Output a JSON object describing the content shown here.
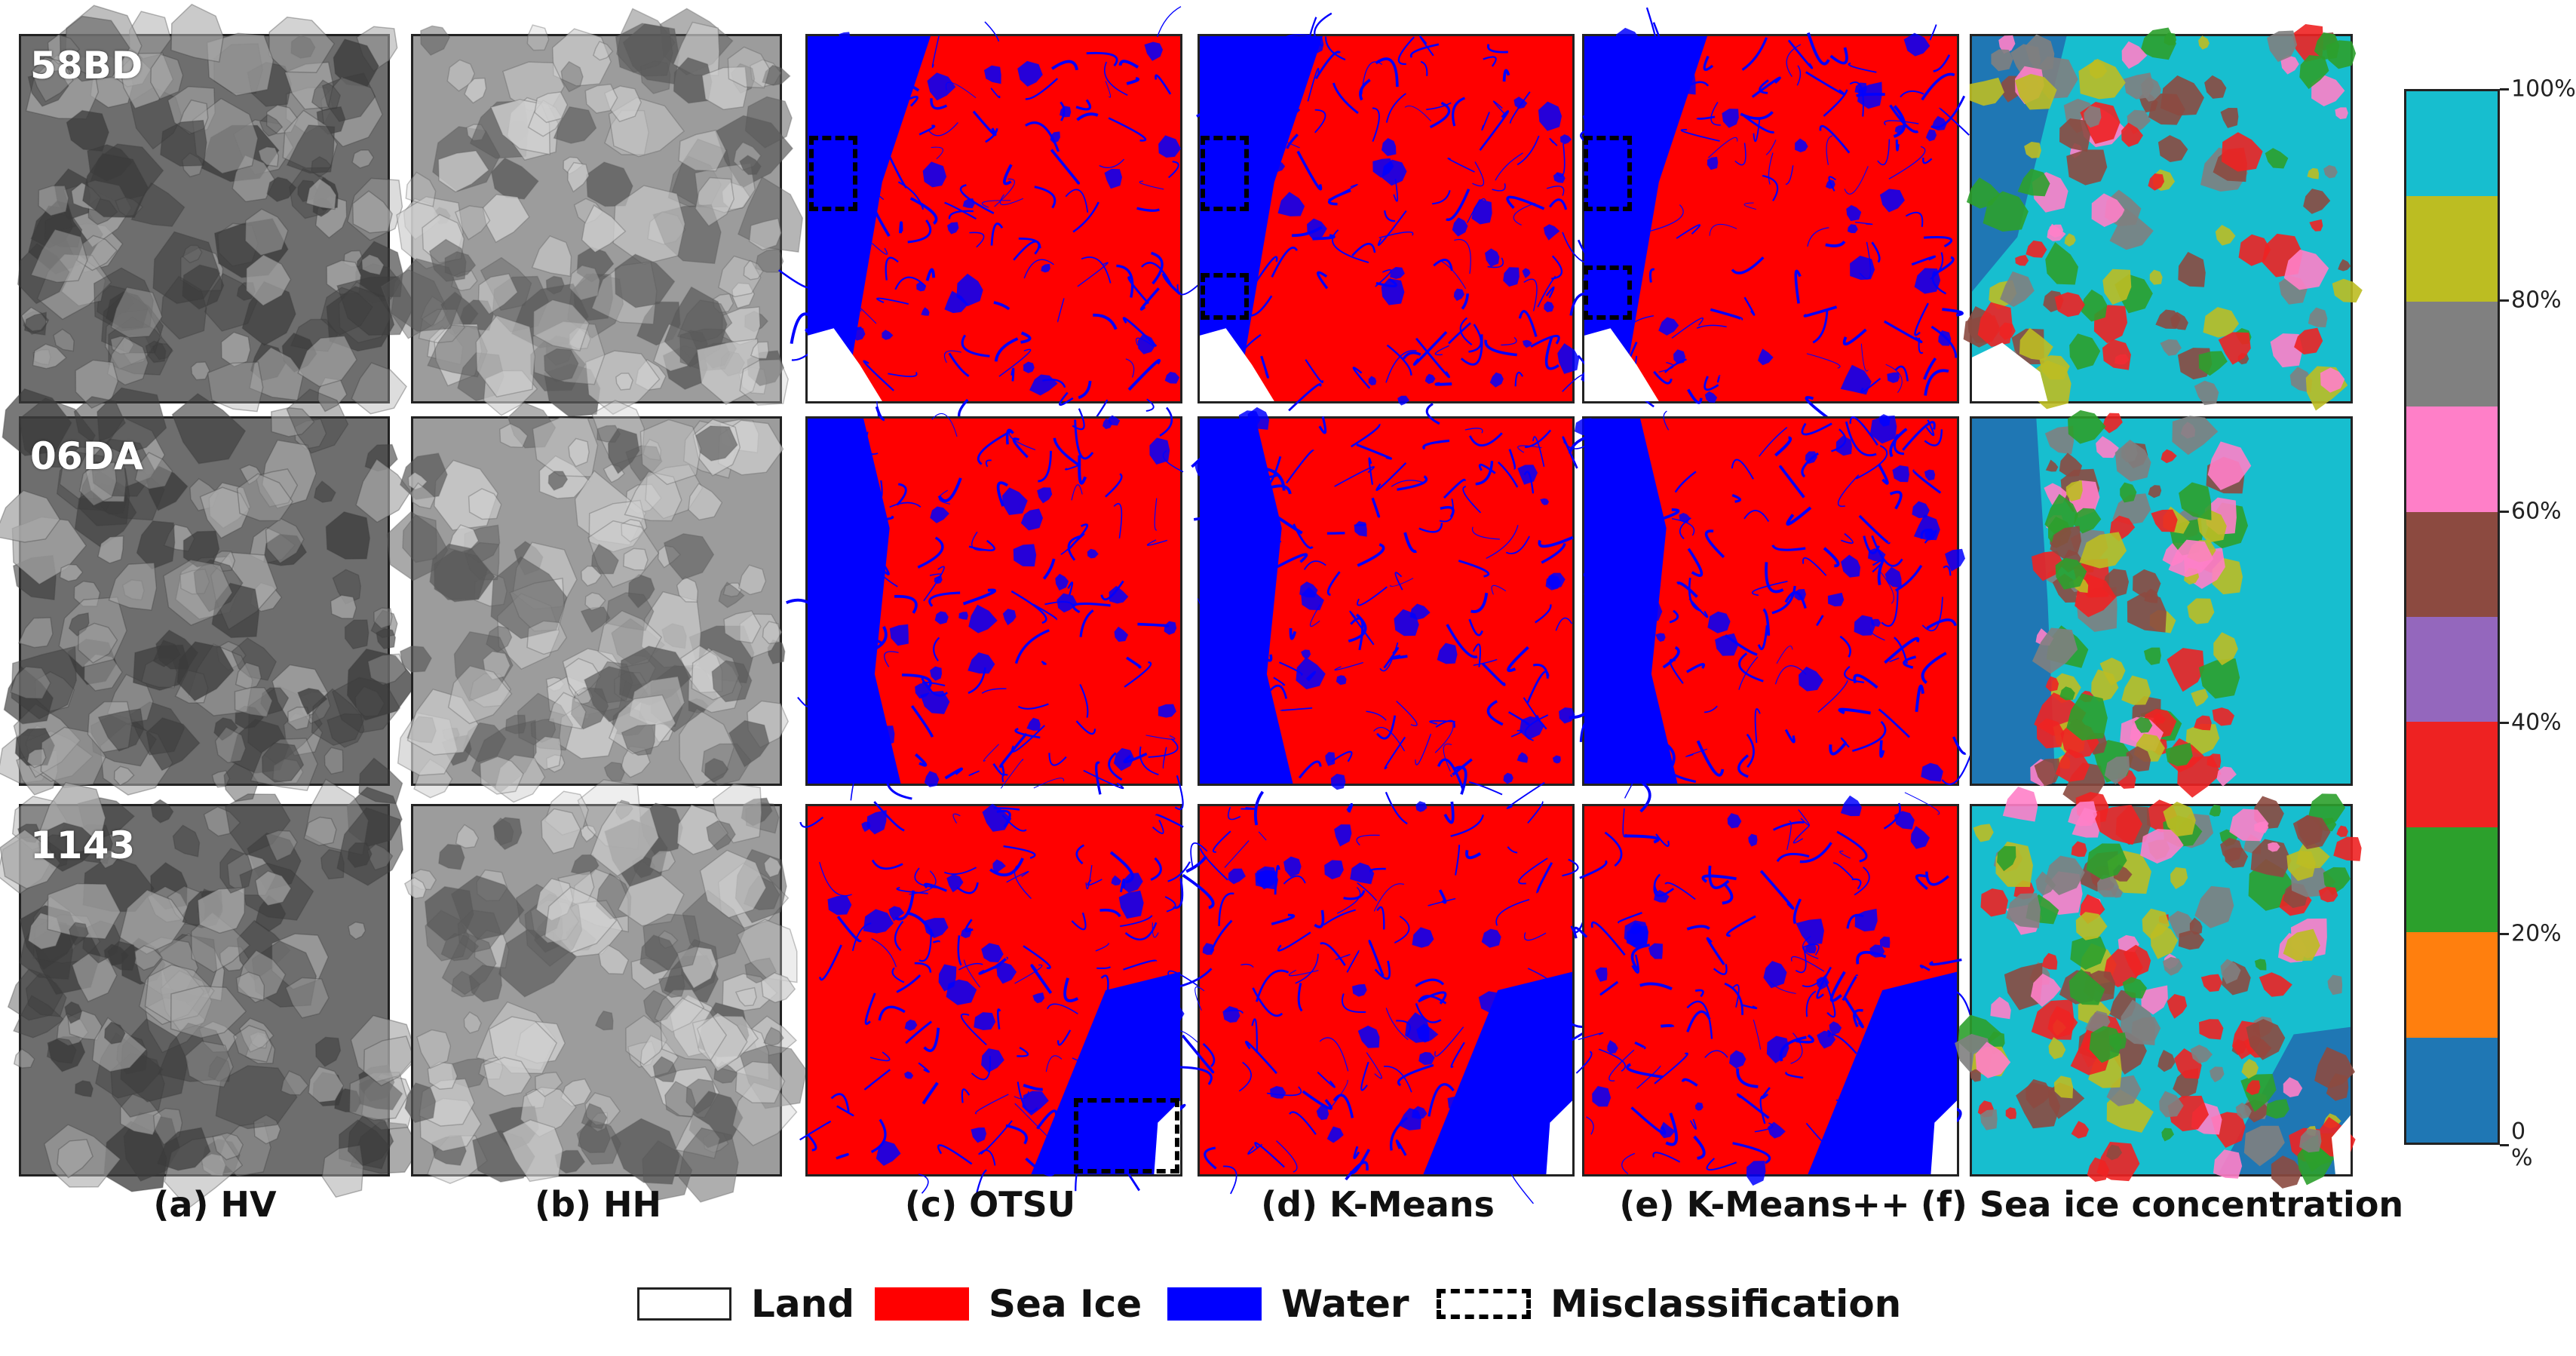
{
  "rows": [
    {
      "label": "58BD"
    },
    {
      "label": "06DA"
    },
    {
      "label": "1143"
    }
  ],
  "columns": [
    {
      "label": "(a) HV"
    },
    {
      "label": "(b) HH"
    },
    {
      "label": "(c) OTSU"
    },
    {
      "label": "(d) K-Means"
    },
    {
      "label": "(e) K-Means++"
    },
    {
      "label": "(f) Sea ice concentration"
    }
  ],
  "colorbar": {
    "ticks": [
      "0 %",
      "20%",
      "40%",
      "60%",
      "80%",
      "100%"
    ],
    "colors": [
      "#1f77b4",
      "#ff7f0e",
      "#2ca02c",
      "#ee2222",
      "#9467bd",
      "#8c4a40",
      "#ff7fc8",
      "#808080",
      "#bcbd22",
      "#17becf"
    ]
  },
  "legend": [
    {
      "key": "land",
      "label": "Land",
      "color": "#ffffff"
    },
    {
      "key": "sea_ice",
      "label": "Sea Ice",
      "color": "#ff0000"
    },
    {
      "key": "water",
      "label": "Water",
      "color": "#0000ff"
    },
    {
      "key": "misclassification",
      "label": "Misclassification",
      "color": "dashed"
    }
  ]
}
